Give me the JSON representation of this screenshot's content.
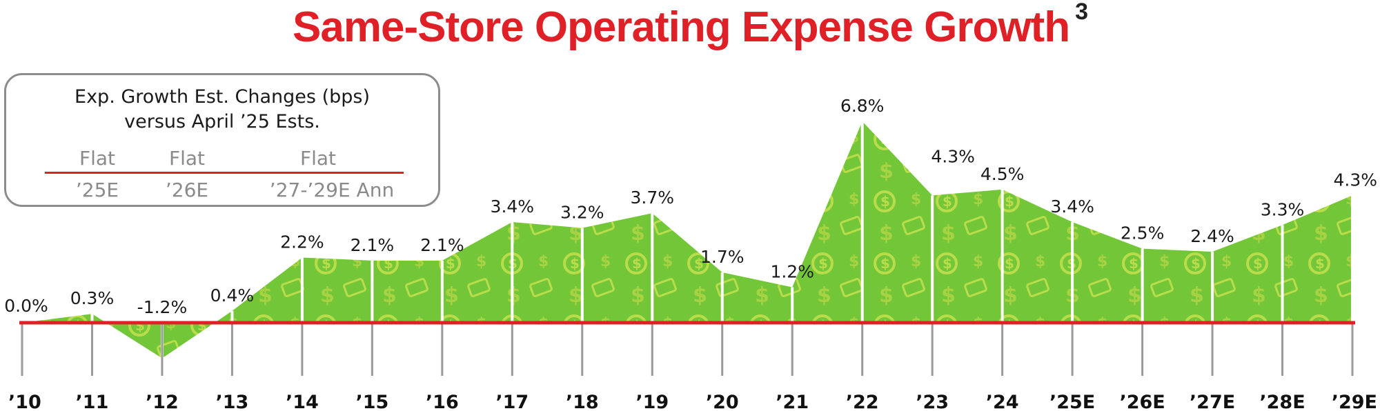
{
  "title": "Same-Store Operating Expense Growth",
  "title_footnote": "3",
  "legend_box": {
    "heading_line1": "Exp. Growth Est. Changes (bps)",
    "heading_line2": "versus April ’25 Ests.",
    "columns": [
      {
        "value": "Flat",
        "label": "’25E"
      },
      {
        "value": "Flat",
        "label": "’26E"
      },
      {
        "value": "Flat",
        "label": "’27-’29E Ann"
      }
    ]
  },
  "colors": {
    "title": "#e02027",
    "baseline": "#e02027",
    "area_fill": "#74c639",
    "area_pattern": "#b8dc4a",
    "divider": "#ffffff",
    "tick": "#9a9a9a"
  },
  "chart_data": {
    "type": "area",
    "title": "Same-Store Operating Expense Growth",
    "xlabel": "",
    "ylabel": "",
    "categories": [
      "’10",
      "’11",
      "’12",
      "’13",
      "’14",
      "’15",
      "’16",
      "’17",
      "’18",
      "’19",
      "’20",
      "’21",
      "’22",
      "’23",
      "’24",
      "’25E",
      "’26E",
      "’27E",
      "’28E",
      "’29E"
    ],
    "values": [
      0.0,
      0.3,
      -1.2,
      0.4,
      2.2,
      2.1,
      2.1,
      3.4,
      3.2,
      3.7,
      1.7,
      1.2,
      6.8,
      4.3,
      4.5,
      3.4,
      2.5,
      2.4,
      3.3,
      4.3
    ],
    "labels": [
      "0.0%",
      "0.3%",
      "-1.2%",
      "0.4%",
      "2.2%",
      "2.1%",
      "2.1%",
      "3.4%",
      "3.2%",
      "3.7%",
      "1.7%",
      "1.2%",
      "6.8%",
      "4.3%",
      "4.5%",
      "3.4%",
      "2.5%",
      "2.4%",
      "3.3%",
      "4.3%"
    ],
    "ylim": [
      -1.5,
      7.0
    ],
    "grid": false,
    "legend": "top-left"
  }
}
